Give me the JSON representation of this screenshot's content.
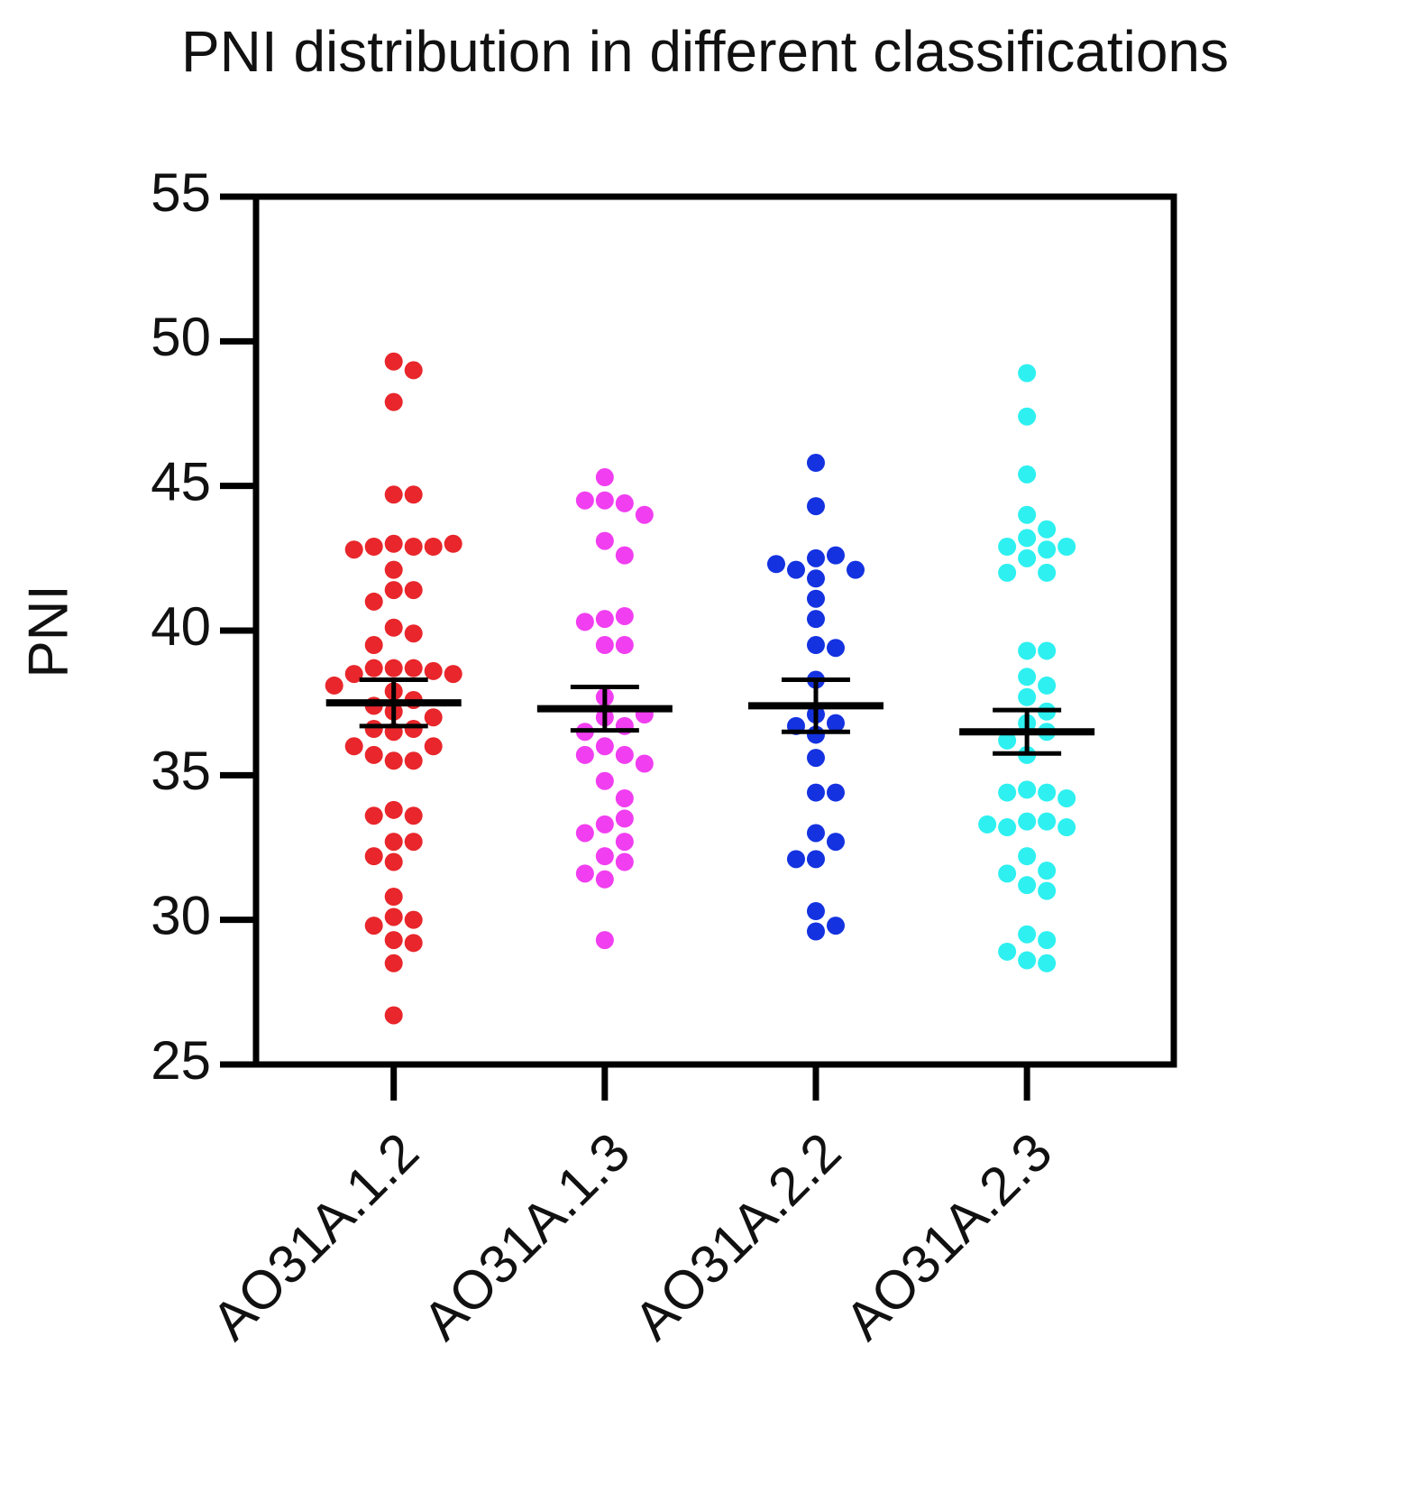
{
  "chart_data": {
    "type": "strip",
    "title": "PNI distribution in different classifications",
    "ylabel": "PNI",
    "categories": [
      "AO31A.1.2",
      "AO31A.1.3",
      "AO31A.2.2",
      "AO31A.2.3"
    ],
    "ylim": [
      25,
      55
    ],
    "yticks": [
      25,
      30,
      35,
      40,
      45,
      50,
      55
    ],
    "series": [
      {
        "color": "#e8262b",
        "values": [
          49.3,
          49.0,
          47.9,
          44.7,
          44.7,
          43.0,
          42.9,
          42.9,
          42.9,
          42.8,
          43.0,
          42.1,
          41.4,
          41.4,
          41.0,
          40.1,
          39.9,
          39.5,
          38.7,
          38.7,
          38.7,
          38.6,
          38.5,
          38.5,
          38.1,
          37.9,
          37.6,
          37.4,
          37.2,
          37.0,
          36.6,
          36.5,
          36.6,
          36.0,
          36.0,
          35.5,
          35.5,
          35.7,
          33.8,
          33.6,
          33.6,
          32.7,
          32.7,
          32.2,
          32.0,
          30.8,
          30.1,
          30.0,
          29.8,
          29.3,
          29.2,
          28.5,
          26.7
        ],
        "mean": 37.5,
        "error": 0.8
      },
      {
        "color": "#f03ef0",
        "values": [
          45.3,
          44.5,
          44.4,
          44.5,
          44.0,
          43.1,
          42.6,
          40.4,
          40.5,
          40.3,
          39.5,
          39.5,
          37.7,
          37.0,
          36.7,
          36.5,
          37.1,
          36.0,
          35.7,
          35.7,
          35.4,
          34.8,
          34.2,
          33.3,
          33.5,
          33.0,
          32.7,
          32.2,
          32.0,
          31.6,
          31.4,
          29.3
        ],
        "mean": 37.3,
        "error": 0.75
      },
      {
        "color": "#1432e0",
        "values": [
          45.8,
          44.3,
          42.5,
          42.6,
          42.1,
          42.1,
          42.3,
          41.8,
          41.1,
          40.4,
          39.5,
          39.4,
          38.3,
          37.1,
          36.8,
          36.7,
          36.4,
          35.6,
          34.4,
          34.4,
          33.0,
          32.7,
          32.1,
          32.1,
          30.3,
          29.8,
          29.6
        ],
        "mean": 37.4,
        "error": 0.9
      },
      {
        "color": "#2ef0f0",
        "values": [
          48.9,
          47.4,
          45.4,
          44.0,
          43.5,
          43.2,
          42.9,
          42.8,
          42.9,
          42.5,
          42.0,
          42.0,
          39.3,
          39.3,
          38.4,
          38.1,
          37.7,
          37.2,
          36.8,
          36.5,
          36.2,
          35.7,
          34.5,
          34.4,
          34.4,
          34.2,
          33.4,
          33.4,
          33.2,
          33.2,
          33.3,
          32.2,
          31.7,
          31.6,
          31.2,
          31.0,
          29.5,
          29.3,
          28.9,
          28.6,
          28.5
        ],
        "mean": 36.5,
        "error": 0.75
      }
    ]
  }
}
